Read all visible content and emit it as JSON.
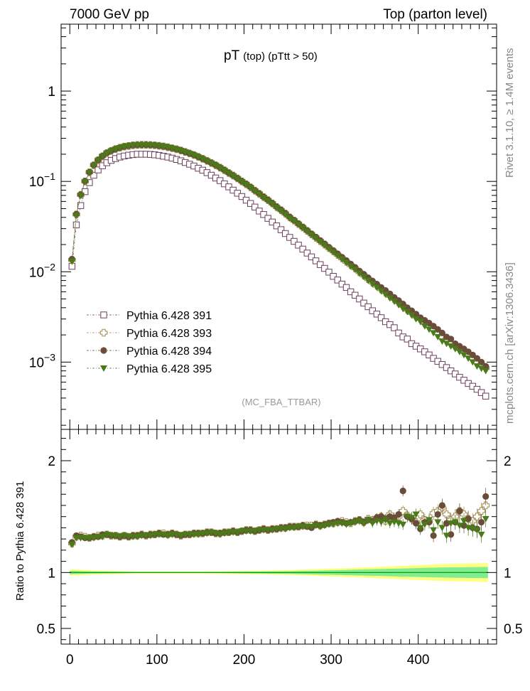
{
  "header": {
    "left": "7000 GeV pp",
    "right": "Top (parton level)"
  },
  "side_text": {
    "rivet": "Rivet 3.1.10, ≥ 1.4M events",
    "mcplots": "mcplots.cern.ch [arXiv:1306.3436]"
  },
  "chart_data": [
    {
      "type": "scatter",
      "panel": "main",
      "title": "pT",
      "title_sub": "(top) (pTtt > 50)",
      "analysis_label": "(MC_FBA_TTBAR)",
      "ylog": true,
      "ylim": [
        0.00018,
        5.5
      ],
      "xlim": [
        -10,
        490
      ],
      "grid": false,
      "legend_position": "lower-left",
      "yticks_major": [
        {
          "value": 1,
          "label": "1"
        },
        {
          "value": 0.1,
          "label": "10",
          "exp": "−1"
        },
        {
          "value": 0.01,
          "label": "10",
          "exp": "−2"
        },
        {
          "value": 0.001,
          "label": "10",
          "exp": "−3"
        }
      ],
      "x": [
        2.5,
        7.5,
        12.5,
        17.5,
        22.5,
        27.5,
        32.5,
        37.5,
        42.5,
        47.5,
        52.5,
        57.5,
        62.5,
        67.5,
        72.5,
        77.5,
        82.5,
        87.5,
        92.5,
        97.5,
        102.5,
        107.5,
        112.5,
        117.5,
        122.5,
        127.5,
        132.5,
        137.5,
        142.5,
        147.5,
        152.5,
        157.5,
        162.5,
        167.5,
        172.5,
        177.5,
        182.5,
        187.5,
        192.5,
        197.5,
        202.5,
        207.5,
        212.5,
        217.5,
        222.5,
        227.5,
        232.5,
        237.5,
        242.5,
        247.5,
        252.5,
        257.5,
        262.5,
        267.5,
        272.5,
        277.5,
        282.5,
        287.5,
        292.5,
        297.5,
        302.5,
        307.5,
        312.5,
        317.5,
        322.5,
        327.5,
        332.5,
        337.5,
        342.5,
        347.5,
        352.5,
        357.5,
        362.5,
        367.5,
        372.5,
        377.5,
        382.5,
        387.5,
        392.5,
        397.5,
        402.5,
        407.5,
        412.5,
        417.5,
        422.5,
        427.5,
        432.5,
        437.5,
        442.5,
        447.5,
        452.5,
        457.5,
        462.5,
        467.5,
        472.5,
        477.5
      ],
      "series": [
        {
          "name": "Pythia 6.428 391",
          "color": "#6b3f5a",
          "marker": "open-square",
          "values": [
            0.0115,
            0.033,
            0.054,
            0.077,
            0.097,
            0.117,
            0.134,
            0.149,
            0.161,
            0.171,
            0.179,
            0.186,
            0.191,
            0.195,
            0.198,
            0.2,
            0.2,
            0.2,
            0.199,
            0.197,
            0.194,
            0.19,
            0.186,
            0.181,
            0.175,
            0.169,
            0.162,
            0.155,
            0.148,
            0.14,
            0.133,
            0.125,
            0.117,
            0.109,
            0.102,
            0.094,
            0.087,
            0.08,
            0.074,
            0.068,
            0.062,
            0.057,
            0.052,
            0.047,
            0.043,
            0.039,
            0.0355,
            0.0322,
            0.0292,
            0.0265,
            0.024,
            0.0217,
            0.0197,
            0.0178,
            0.0161,
            0.0146,
            0.0132,
            0.012,
            0.0109,
            0.0099,
            0.0089,
            0.0081,
            0.0073,
            0.0067,
            0.006,
            0.0055,
            0.005,
            0.0045,
            0.0041,
            0.0037,
            0.0034,
            0.0031,
            0.0028,
            0.0026,
            0.0024,
            0.0021,
            0.0019,
            0.0018,
            0.0016,
            0.0015,
            0.0014,
            0.0013,
            0.0012,
            0.0011,
            0.00102,
            0.00094,
            0.00087,
            0.0008,
            0.00074,
            0.00068,
            0.00063,
            0.00058,
            0.00054,
            0.0005,
            0.00046,
            0.00042
          ]
        },
        {
          "name": "Pythia 6.428 393",
          "color": "#a08a4a",
          "marker": "open-cross",
          "values": [
            0.0135,
            0.043,
            0.071,
            0.1,
            0.126,
            0.151,
            0.172,
            0.19,
            0.206,
            0.218,
            0.228,
            0.236,
            0.243,
            0.247,
            0.251,
            0.253,
            0.254,
            0.254,
            0.253,
            0.251,
            0.248,
            0.244,
            0.239,
            0.233,
            0.227,
            0.22,
            0.212,
            0.204,
            0.196,
            0.187,
            0.178,
            0.169,
            0.16,
            0.151,
            0.142,
            0.133,
            0.124,
            0.116,
            0.108,
            0.1,
            0.093,
            0.086,
            0.079,
            0.073,
            0.067,
            0.062,
            0.057,
            0.052,
            0.048,
            0.044,
            0.04,
            0.0368,
            0.0337,
            0.0309,
            0.0283,
            0.0259,
            0.0238,
            0.0218,
            0.02,
            0.0183,
            0.0168,
            0.0154,
            0.0141,
            0.0129,
            0.0118,
            0.0109,
            0.0099,
            0.0091,
            0.0083,
            0.0076,
            0.007,
            0.0064,
            0.0059,
            0.0054,
            0.005,
            0.0046,
            0.0042,
            0.0038,
            0.0035,
            0.0032,
            0.003,
            0.0027,
            0.0025,
            0.0023,
            0.0021,
            0.0019,
            0.0018,
            0.0016,
            0.0015,
            0.0014,
            0.0013,
            0.0012,
            0.0011,
            0.001,
            0.00094,
            0.00086
          ]
        },
        {
          "name": "Pythia 6.428 394",
          "color": "#6b4c3a",
          "marker": "filled-circle",
          "values": [
            0.0138,
            0.0435,
            0.0715,
            0.1005,
            0.1265,
            0.1515,
            0.1725,
            0.1905,
            0.2065,
            0.2185,
            0.2285,
            0.2365,
            0.2435,
            0.2475,
            0.2515,
            0.2535,
            0.2545,
            0.2545,
            0.2535,
            0.2515,
            0.2485,
            0.2445,
            0.2395,
            0.2335,
            0.2275,
            0.2205,
            0.2125,
            0.2045,
            0.1965,
            0.1875,
            0.1785,
            0.1695,
            0.1605,
            0.1515,
            0.1425,
            0.1335,
            0.1245,
            0.1165,
            0.1085,
            0.1005,
            0.0935,
            0.0865,
            0.0795,
            0.0735,
            0.0675,
            0.0625,
            0.0575,
            0.0525,
            0.0485,
            0.0445,
            0.0405,
            0.0372,
            0.0341,
            0.0313,
            0.0287,
            0.0263,
            0.0242,
            0.0222,
            0.0204,
            0.0187,
            0.0172,
            0.0158,
            0.0145,
            0.0133,
            0.0122,
            0.0112,
            0.0102,
            0.0094,
            0.0086,
            0.0079,
            0.0073,
            0.0067,
            0.0062,
            0.0057,
            0.0052,
            0.0048,
            0.0044,
            0.004,
            0.0037,
            0.0034,
            0.0031,
            0.0029,
            0.0027,
            0.0025,
            0.0023,
            0.0021,
            0.0019,
            0.0018,
            0.0016,
            0.0015,
            0.0014,
            0.0013,
            0.0012,
            0.0011,
            0.001,
            0.0009
          ]
        },
        {
          "name": "Pythia 6.428 395",
          "color": "#4a7a1a",
          "marker": "filled-triangle-down",
          "values": [
            0.013,
            0.042,
            0.07,
            0.099,
            0.125,
            0.15,
            0.171,
            0.189,
            0.205,
            0.217,
            0.227,
            0.235,
            0.242,
            0.246,
            0.25,
            0.252,
            0.253,
            0.253,
            0.252,
            0.25,
            0.247,
            0.243,
            0.238,
            0.232,
            0.226,
            0.219,
            0.211,
            0.203,
            0.195,
            0.186,
            0.177,
            0.168,
            0.159,
            0.15,
            0.141,
            0.132,
            0.123,
            0.115,
            0.107,
            0.099,
            0.092,
            0.085,
            0.078,
            0.072,
            0.066,
            0.061,
            0.056,
            0.051,
            0.047,
            0.043,
            0.039,
            0.0365,
            0.0334,
            0.0306,
            0.028,
            0.0256,
            0.0235,
            0.0215,
            0.0197,
            0.018,
            0.0165,
            0.0151,
            0.0138,
            0.0126,
            0.0115,
            0.0106,
            0.0096,
            0.0088,
            0.008,
            0.0073,
            0.0067,
            0.0061,
            0.0056,
            0.0051,
            0.0047,
            0.0043,
            0.0039,
            0.0036,
            0.0033,
            0.003,
            0.0028,
            0.0025,
            0.0023,
            0.0021,
            0.0019,
            0.0017,
            0.0016,
            0.0015,
            0.0014,
            0.0013,
            0.0012,
            0.0011,
            0.001,
            0.0009,
            0.00085,
            0.0008
          ]
        }
      ]
    },
    {
      "type": "scatter",
      "panel": "ratio",
      "ylabel": "Ratio to Pythia 6.428 391",
      "ylim": [
        0.36,
        2.28
      ],
      "xlim": [
        -10,
        490
      ],
      "yticks_major": [
        {
          "value": 2,
          "label": "2"
        },
        {
          "value": 1,
          "label": "1"
        },
        {
          "value": 0.5,
          "label": "0.5"
        }
      ],
      "xticks_major": [
        0,
        100,
        200,
        300,
        400
      ],
      "reference_band": {
        "color_outer": "#ffff80",
        "color_inner": "#80ee90",
        "line_color": "#009000",
        "outer_halfwidth": [
          0.03,
          0.02,
          0.015,
          0.01,
          0.01,
          0.01,
          0.01,
          0.012,
          0.015,
          0.018,
          0.022,
          0.028,
          0.035,
          0.042,
          0.05,
          0.058,
          0.066,
          0.075,
          0.085
        ],
        "inner_halfwidth": [
          0.015,
          0.01,
          0.008,
          0.005,
          0.005,
          0.005,
          0.005,
          0.006,
          0.008,
          0.01,
          0.012,
          0.016,
          0.02,
          0.025,
          0.03,
          0.035,
          0.04,
          0.045,
          0.05
        ],
        "band_x": [
          0,
          25,
          50,
          75,
          100,
          125,
          150,
          175,
          200,
          225,
          250,
          275,
          300,
          325,
          350,
          375,
          400,
          425,
          480
        ]
      },
      "x": [
        2.5,
        7.5,
        12.5,
        17.5,
        22.5,
        27.5,
        32.5,
        37.5,
        42.5,
        47.5,
        52.5,
        57.5,
        62.5,
        67.5,
        72.5,
        77.5,
        82.5,
        87.5,
        92.5,
        97.5,
        102.5,
        107.5,
        112.5,
        117.5,
        122.5,
        127.5,
        132.5,
        137.5,
        142.5,
        147.5,
        152.5,
        157.5,
        162.5,
        167.5,
        172.5,
        177.5,
        182.5,
        187.5,
        192.5,
        197.5,
        202.5,
        207.5,
        212.5,
        217.5,
        222.5,
        227.5,
        232.5,
        237.5,
        242.5,
        247.5,
        252.5,
        257.5,
        262.5,
        267.5,
        272.5,
        277.5,
        282.5,
        287.5,
        292.5,
        297.5,
        302.5,
        307.5,
        312.5,
        317.5,
        322.5,
        327.5,
        332.5,
        337.5,
        342.5,
        347.5,
        352.5,
        357.5,
        362.5,
        367.5,
        372.5,
        377.5,
        382.5,
        387.5,
        392.5,
        397.5,
        402.5,
        407.5,
        412.5,
        417.5,
        422.5,
        427.5,
        432.5,
        437.5,
        442.5,
        447.5,
        452.5,
        457.5,
        462.5,
        467.5,
        472.5,
        477.5
      ],
      "series": [
        {
          "name": "Pythia 6.428 393",
          "color": "#a08a4a",
          "marker": "open-cross",
          "values": [
            1.26,
            1.32,
            1.33,
            1.32,
            1.31,
            1.32,
            1.33,
            1.33,
            1.34,
            1.33,
            1.33,
            1.32,
            1.33,
            1.32,
            1.33,
            1.33,
            1.34,
            1.33,
            1.34,
            1.34,
            1.35,
            1.35,
            1.34,
            1.35,
            1.34,
            1.33,
            1.34,
            1.34,
            1.35,
            1.35,
            1.35,
            1.36,
            1.36,
            1.35,
            1.35,
            1.36,
            1.36,
            1.37,
            1.36,
            1.37,
            1.38,
            1.38,
            1.37,
            1.38,
            1.39,
            1.38,
            1.39,
            1.39,
            1.4,
            1.4,
            1.41,
            1.41,
            1.41,
            1.42,
            1.42,
            1.42,
            1.43,
            1.42,
            1.43,
            1.44,
            1.44,
            1.45,
            1.46,
            1.45,
            1.44,
            1.46,
            1.47,
            1.45,
            1.48,
            1.47,
            1.49,
            1.5,
            1.46,
            1.52,
            1.48,
            1.5,
            1.55,
            1.51,
            1.48,
            1.45,
            1.52,
            1.47,
            1.46,
            1.53,
            1.55,
            1.58,
            1.52,
            1.47,
            1.5,
            1.55,
            1.52,
            1.48,
            1.46,
            1.5,
            1.55,
            1.6
          ]
        },
        {
          "name": "Pythia 6.428 394",
          "color": "#6b4c3a",
          "marker": "filled-circle",
          "values": [
            1.27,
            1.33,
            1.32,
            1.31,
            1.31,
            1.32,
            1.32,
            1.34,
            1.34,
            1.33,
            1.33,
            1.32,
            1.33,
            1.32,
            1.33,
            1.33,
            1.34,
            1.33,
            1.34,
            1.34,
            1.35,
            1.34,
            1.34,
            1.35,
            1.34,
            1.33,
            1.34,
            1.34,
            1.35,
            1.35,
            1.35,
            1.36,
            1.36,
            1.35,
            1.35,
            1.36,
            1.36,
            1.37,
            1.36,
            1.37,
            1.38,
            1.38,
            1.37,
            1.38,
            1.39,
            1.38,
            1.39,
            1.39,
            1.4,
            1.4,
            1.41,
            1.41,
            1.41,
            1.42,
            1.41,
            1.4,
            1.43,
            1.42,
            1.43,
            1.44,
            1.45,
            1.46,
            1.45,
            1.44,
            1.45,
            1.46,
            1.47,
            1.45,
            1.47,
            1.46,
            1.49,
            1.5,
            1.48,
            1.5,
            1.49,
            1.52,
            1.73,
            1.5,
            1.48,
            1.44,
            1.39,
            1.45,
            1.45,
            1.33,
            1.52,
            1.6,
            1.44,
            1.34,
            1.45,
            1.55,
            1.42,
            1.48,
            1.4,
            1.39,
            1.45,
            1.68
          ]
        },
        {
          "name": "Pythia 6.428 395",
          "color": "#4a7a1a",
          "marker": "filled-triangle-down",
          "values": [
            1.25,
            1.31,
            1.31,
            1.31,
            1.31,
            1.31,
            1.32,
            1.32,
            1.34,
            1.33,
            1.33,
            1.32,
            1.33,
            1.32,
            1.32,
            1.32,
            1.33,
            1.33,
            1.33,
            1.34,
            1.34,
            1.34,
            1.33,
            1.34,
            1.34,
            1.33,
            1.34,
            1.34,
            1.34,
            1.34,
            1.35,
            1.35,
            1.36,
            1.35,
            1.34,
            1.35,
            1.36,
            1.36,
            1.36,
            1.37,
            1.37,
            1.37,
            1.37,
            1.38,
            1.38,
            1.38,
            1.38,
            1.39,
            1.39,
            1.39,
            1.4,
            1.4,
            1.41,
            1.41,
            1.41,
            1.41,
            1.42,
            1.41,
            1.42,
            1.43,
            1.43,
            1.44,
            1.44,
            1.43,
            1.44,
            1.45,
            1.46,
            1.44,
            1.47,
            1.44,
            1.46,
            1.45,
            1.47,
            1.44,
            1.45,
            1.44,
            1.43,
            1.5,
            1.49,
            1.52,
            1.4,
            1.43,
            1.47,
            1.38,
            1.45,
            1.4,
            1.33,
            1.44,
            1.45,
            1.42,
            1.46,
            1.4,
            1.39,
            1.38,
            1.34,
            1.48
          ]
        }
      ]
    }
  ]
}
